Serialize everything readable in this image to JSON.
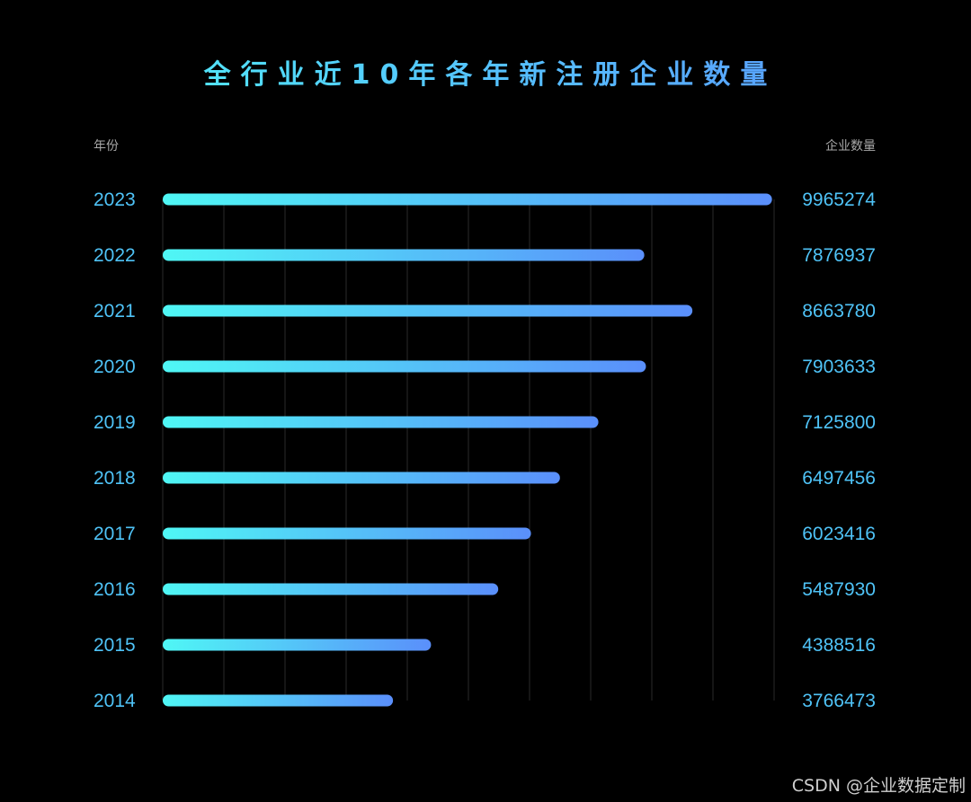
{
  "chart_data": {
    "type": "bar",
    "orientation": "horizontal",
    "title": "全行业近10年各年新注册企业数量",
    "category_header": "年份",
    "value_header": "企业数量",
    "categories": [
      "2023",
      "2022",
      "2021",
      "2020",
      "2019",
      "2018",
      "2017",
      "2016",
      "2015",
      "2014"
    ],
    "values": [
      9965274,
      7876937,
      8663780,
      7903633,
      7125800,
      6497456,
      6023416,
      5487930,
      4388516,
      3766473
    ],
    "xlim": [
      0,
      10000000
    ],
    "grid": true,
    "legend": "none",
    "colors": {
      "bar_start": "#4ff7f5",
      "bar_end": "#5a8ffb",
      "label": "#4fc3f7",
      "background": "#000000",
      "grid": "#2a2a2a"
    }
  },
  "watermark": "CSDN @企业数据定制"
}
